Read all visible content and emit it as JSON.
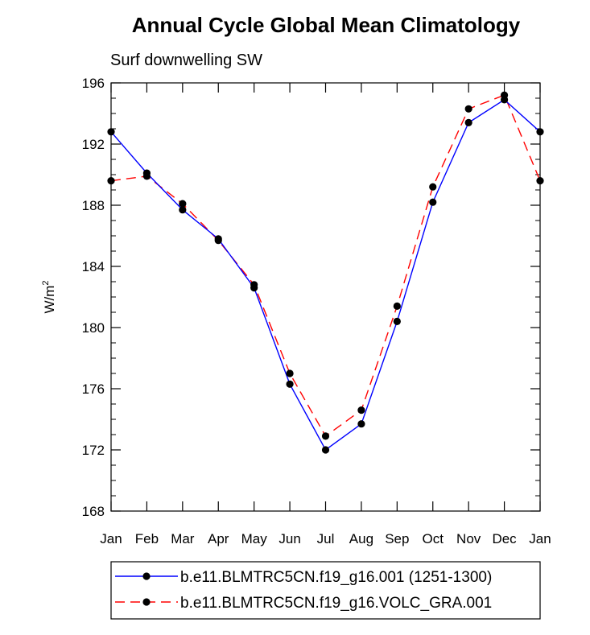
{
  "chart_data": {
    "type": "line",
    "title": "Annual Cycle Global Mean Climatology",
    "subtitle": "Surf downwelling SW",
    "xlabel": "",
    "ylabel": "W/m",
    "ylabel_superscript": "2",
    "ylim": [
      168,
      196
    ],
    "y_ticks": [
      168,
      172,
      176,
      180,
      184,
      188,
      192,
      196
    ],
    "y_minor_step": 1,
    "categories": [
      "Jan",
      "Feb",
      "Mar",
      "Apr",
      "May",
      "Jun",
      "Jul",
      "Aug",
      "Sep",
      "Oct",
      "Nov",
      "Dec",
      "Jan"
    ],
    "grid": false,
    "legend_position": "bottom",
    "series": [
      {
        "name": "b.e11.BLMTRC5CN.f19_g16.001 (1251-1300)",
        "color": "#0000ff",
        "line_style": "solid",
        "values": [
          192.8,
          190.1,
          187.7,
          185.8,
          182.6,
          176.3,
          172.0,
          173.7,
          180.4,
          188.2,
          193.4,
          194.9,
          192.8
        ]
      },
      {
        "name": "b.e11.BLMTRC5CN.f19_g16.VOLC_GRA.001",
        "color": "#ff0000",
        "line_style": "dashed",
        "values": [
          189.6,
          189.9,
          188.1,
          185.7,
          182.8,
          177.0,
          172.9,
          174.6,
          181.4,
          189.2,
          194.3,
          195.2,
          189.6
        ]
      }
    ]
  }
}
